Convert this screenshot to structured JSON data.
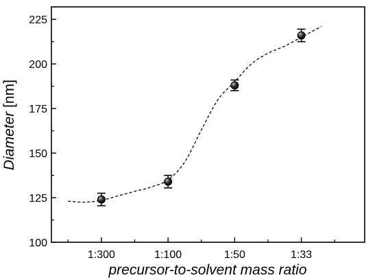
{
  "chart_data": {
    "type": "scatter",
    "xlabel": "precursor-to-solvent mass ratio",
    "ylabel_italic": "Diameter",
    "ylabel_unit": "[nm]",
    "categories": [
      "1:300",
      "1:100",
      "1:50",
      "1:33"
    ],
    "x_tick_labels": [
      "1:300",
      "1:100",
      "1:50",
      "1:33"
    ],
    "y_ticks": [
      100,
      125,
      150,
      175,
      200,
      225
    ],
    "ylim": [
      100,
      232
    ],
    "xlim": [
      0.25,
      4.95
    ],
    "grid": false,
    "series": [
      {
        "marker": "filled-circle-with-error-bars",
        "x": [
          1,
          2,
          3,
          4
        ],
        "y": [
          124,
          134,
          188,
          216
        ],
        "error": [
          3.5,
          3.5,
          3,
          3.5
        ]
      }
    ],
    "fit_curve": {
      "style": "dashed",
      "x": [
        0.5,
        0.75,
        1.0,
        1.25,
        1.5,
        1.75,
        2.0,
        2.25,
        2.5,
        2.75,
        3.0,
        3.25,
        3.5,
        3.75,
        4.0,
        4.3
      ],
      "y": [
        123,
        122.5,
        123.5,
        126,
        128.5,
        131,
        135,
        145,
        163,
        180,
        190,
        200,
        206,
        210,
        215,
        221
      ]
    }
  }
}
